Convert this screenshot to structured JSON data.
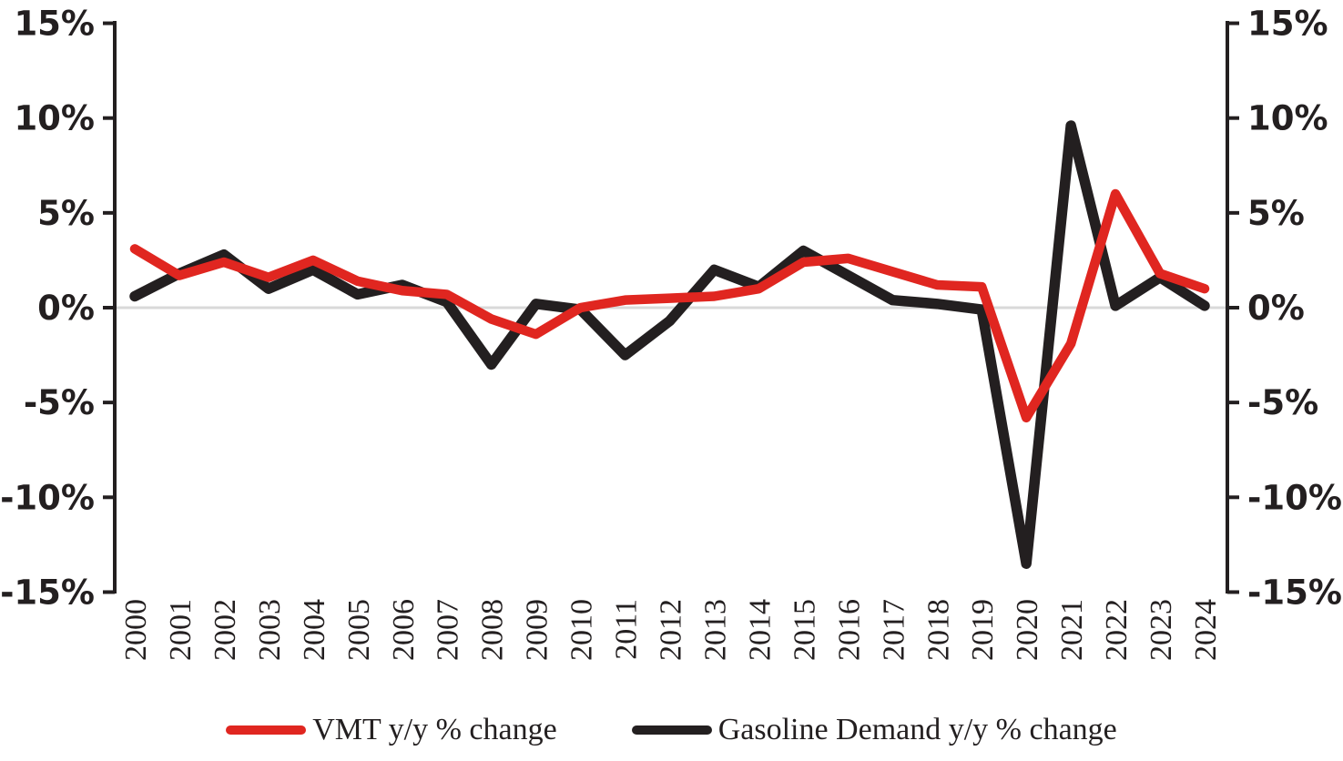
{
  "chart_data": {
    "type": "line",
    "title": "",
    "xlabel": "",
    "ylabel": "",
    "categories": [
      "2000",
      "2001",
      "2002",
      "2003",
      "2004",
      "2005",
      "2006",
      "2007",
      "2008",
      "2009",
      "2010",
      "2011",
      "2012",
      "2013",
      "2014",
      "2015",
      "2016",
      "2017",
      "2018",
      "2019",
      "2020",
      "2021",
      "2022",
      "2023",
      "2024"
    ],
    "series": [
      {
        "name": "VMT y/y % change",
        "color": "#e02620",
        "values": [
          3.1,
          1.7,
          2.4,
          1.6,
          2.5,
          1.4,
          0.9,
          0.7,
          -0.6,
          -1.4,
          0.0,
          0.4,
          0.5,
          0.6,
          1.0,
          2.4,
          2.6,
          1.9,
          1.2,
          1.1,
          -5.8,
          -1.9,
          6.0,
          1.8,
          1.0
        ]
      },
      {
        "name": "Gasoline Demand y/y % change",
        "color": "#231f20",
        "values": [
          0.6,
          1.8,
          2.8,
          1.0,
          2.0,
          0.7,
          1.2,
          0.3,
          -3.0,
          0.2,
          -0.1,
          -2.5,
          -0.7,
          2.0,
          1.1,
          3.0,
          1.7,
          0.4,
          0.2,
          -0.1,
          -13.5,
          9.6,
          0.1,
          1.6,
          0.1
        ]
      }
    ],
    "ylim": [
      -15,
      15
    ],
    "y_tick_values": [
      15,
      10,
      5,
      0,
      -5,
      -10,
      -15
    ],
    "y_tick_labels": [
      "15%",
      "10%",
      "5%",
      "0%",
      "-5%",
      "-10%",
      "-15%"
    ],
    "dual_axis": true,
    "grid": "zero-line-only",
    "zero_line_color": "#d9d9d9",
    "axis_color": "#231f20",
    "legend_position": "bottom"
  }
}
